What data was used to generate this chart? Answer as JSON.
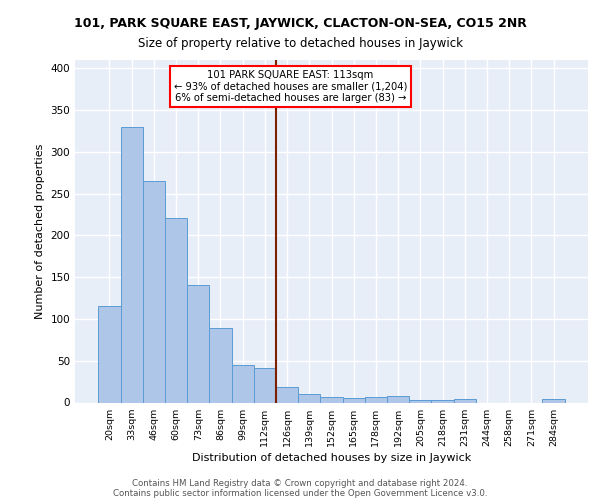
{
  "title_top": "101, PARK SQUARE EAST, JAYWICK, CLACTON-ON-SEA, CO15 2NR",
  "title_main": "Size of property relative to detached houses in Jaywick",
  "xlabel": "Distribution of detached houses by size in Jaywick",
  "ylabel": "Number of detached properties",
  "bar_labels": [
    "20sqm",
    "33sqm",
    "46sqm",
    "60sqm",
    "73sqm",
    "86sqm",
    "99sqm",
    "112sqm",
    "126sqm",
    "139sqm",
    "152sqm",
    "165sqm",
    "178sqm",
    "192sqm",
    "205sqm",
    "218sqm",
    "231sqm",
    "244sqm",
    "258sqm",
    "271sqm",
    "284sqm"
  ],
  "bar_values": [
    116,
    330,
    265,
    221,
    141,
    89,
    45,
    41,
    19,
    10,
    7,
    5,
    7,
    8,
    3,
    3,
    4,
    0,
    0,
    0,
    4
  ],
  "bar_color": "#aec6e8",
  "bar_edge_color": "#5b9bd5",
  "property_line_x": 7.5,
  "property_label": "101 PARK SQUARE EAST: 113sqm",
  "annotation_line1": "← 93% of detached houses are smaller (1,204)",
  "annotation_line2": "6% of semi-detached houses are larger (83) →",
  "annotation_box_color": "white",
  "annotation_box_edge": "red",
  "vline_color": "#7B2000",
  "footer1": "Contains HM Land Registry data © Crown copyright and database right 2024.",
  "footer2": "Contains public sector information licensed under the Open Government Licence v3.0.",
  "bg_color": "#e8eef8",
  "grid_color": "white",
  "ylim": [
    0,
    410
  ],
  "yticks": [
    0,
    50,
    100,
    150,
    200,
    250,
    300,
    350,
    400
  ]
}
